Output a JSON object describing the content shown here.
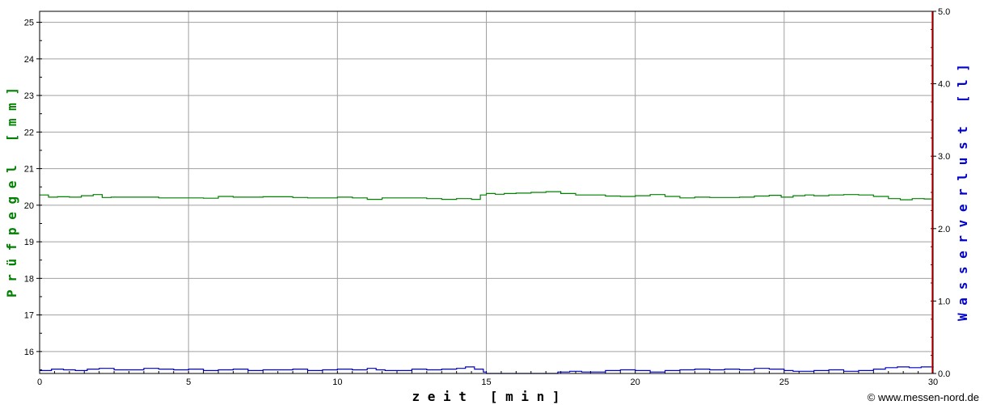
{
  "chart_data": {
    "type": "line",
    "xlabel": "z e i t   [ m i n ]",
    "ylabel_left": "P r ü f p e g e l   [ m m ]",
    "ylabel_right": "W a s s e r v e r l u s t   [ l ]",
    "xlim": [
      0,
      30
    ],
    "ylim_left": [
      15.4,
      25.3
    ],
    "ylim_right": [
      0.0,
      5.0
    ],
    "x_ticks": [
      0,
      5,
      10,
      15,
      20,
      25,
      30
    ],
    "x_tick_labels": [
      "0",
      "5",
      "10",
      "15",
      "20",
      "25",
      "30"
    ],
    "y_left_ticks": [
      16,
      17,
      18,
      19,
      20,
      21,
      22,
      23,
      24,
      25
    ],
    "y_left_tick_labels": [
      "16",
      "17",
      "18",
      "19",
      "20",
      "21",
      "22",
      "23",
      "24",
      "25"
    ],
    "y_right_ticks": [
      0.0,
      1.0,
      2.0,
      3.0,
      4.0,
      5.0
    ],
    "y_right_tick_labels": [
      "0.0",
      "1.0",
      "2.0",
      "3.0",
      "4.0",
      "5.0"
    ],
    "grid": true,
    "marker_line": {
      "x": 30,
      "color": "#ff0000"
    },
    "series": [
      {
        "axis": "left",
        "color": "#008000",
        "x": [
          0,
          0.3,
          0.6,
          1.0,
          1.4,
          1.8,
          2.1,
          2.4,
          3.0,
          3.5,
          4.0,
          4.5,
          5.0,
          5.5,
          6.0,
          6.5,
          7.0,
          7.5,
          8.0,
          8.5,
          9.0,
          9.5,
          10.0,
          10.5,
          11.0,
          11.5,
          12.0,
          12.5,
          13.0,
          13.5,
          14.0,
          14.5,
          14.8,
          15.0,
          15.3,
          15.6,
          16.0,
          16.5,
          17.0,
          17.5,
          18.0,
          18.5,
          19.0,
          19.5,
          20.0,
          20.5,
          21.0,
          21.5,
          22.0,
          22.5,
          23.0,
          23.5,
          24.0,
          24.5,
          24.9,
          25.3,
          25.7,
          26.0,
          26.5,
          27.0,
          27.5,
          28.0,
          28.5,
          28.9,
          29.3,
          29.7,
          30.0
        ],
        "values": [
          20.28,
          20.22,
          20.23,
          20.22,
          20.26,
          20.29,
          20.21,
          20.22,
          20.22,
          20.22,
          20.2,
          20.2,
          20.2,
          20.19,
          20.24,
          20.22,
          20.22,
          20.23,
          20.23,
          20.21,
          20.2,
          20.2,
          20.22,
          20.2,
          20.16,
          20.2,
          20.2,
          20.2,
          20.18,
          20.16,
          20.18,
          20.16,
          20.28,
          20.32,
          20.3,
          20.32,
          20.33,
          20.35,
          20.37,
          20.32,
          20.28,
          20.28,
          20.25,
          20.24,
          20.26,
          20.29,
          20.24,
          20.2,
          20.22,
          20.21,
          20.21,
          20.22,
          20.25,
          20.27,
          20.22,
          20.26,
          20.28,
          20.26,
          20.28,
          20.29,
          20.28,
          20.24,
          20.18,
          20.15,
          20.18,
          20.17,
          20.17
        ]
      },
      {
        "axis": "right",
        "color": "#0000cc",
        "x": [
          0,
          0.4,
          0.8,
          1.2,
          1.6,
          2.0,
          2.5,
          3.0,
          3.5,
          4.0,
          4.5,
          5.0,
          5.5,
          6.0,
          6.5,
          7.0,
          7.5,
          8.0,
          8.5,
          9.0,
          9.5,
          10.0,
          10.5,
          11.0,
          11.3,
          11.6,
          12.0,
          12.5,
          13.0,
          13.5,
          14.0,
          14.3,
          14.6,
          14.9,
          15.0,
          15.5,
          16.0,
          16.5,
          17.0,
          17.4,
          17.8,
          18.2,
          18.6,
          19.0,
          19.5,
          20.0,
          20.5,
          21.0,
          21.5,
          22.0,
          22.5,
          23.0,
          23.5,
          24.0,
          24.5,
          25.0,
          25.3,
          25.6,
          26.0,
          26.5,
          27.0,
          27.5,
          28.0,
          28.4,
          28.8,
          29.2,
          29.6,
          30.0
        ],
        "values": [
          0.04,
          0.06,
          0.05,
          0.04,
          0.06,
          0.07,
          0.05,
          0.05,
          0.07,
          0.06,
          0.05,
          0.06,
          0.04,
          0.05,
          0.06,
          0.04,
          0.05,
          0.05,
          0.06,
          0.04,
          0.05,
          0.06,
          0.05,
          0.07,
          0.05,
          0.04,
          0.04,
          0.06,
          0.05,
          0.06,
          0.07,
          0.09,
          0.06,
          0.02,
          0.0,
          0.0,
          0.0,
          0.0,
          0.0,
          0.02,
          0.03,
          0.02,
          0.02,
          0.04,
          0.05,
          0.04,
          0.02,
          0.04,
          0.05,
          0.06,
          0.05,
          0.06,
          0.05,
          0.07,
          0.06,
          0.04,
          0.03,
          0.03,
          0.04,
          0.05,
          0.03,
          0.04,
          0.06,
          0.08,
          0.09,
          0.08,
          0.09,
          0.08
        ]
      }
    ]
  },
  "footer": {
    "credit": "© www.messen-nord.de"
  }
}
